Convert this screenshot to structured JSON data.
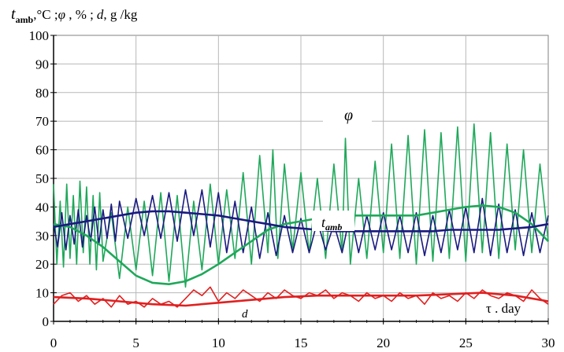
{
  "chart_data": {
    "type": "line",
    "title": "",
    "ylabel_parts": {
      "t": "t",
      "t_sub": "amb",
      "unit1": ",°C ;",
      "phi": "φ",
      "unit2": " , % ;",
      "d": "d",
      "unit3": ", g /kg"
    },
    "xlabel": "τ . day",
    "xlim": [
      0,
      30
    ],
    "ylim": [
      0,
      100
    ],
    "x_ticks": [
      0,
      5,
      10,
      15,
      20,
      25,
      30
    ],
    "y_ticks": [
      0,
      10,
      20,
      30,
      40,
      50,
      60,
      70,
      80,
      90,
      100
    ],
    "grid": true,
    "series": [
      {
        "name": "φ",
        "label_t": "",
        "color": "#1fa85a",
        "kind": "hourly",
        "x": [
          0,
          0.2,
          0.4,
          0.6,
          0.8,
          1.0,
          1.2,
          1.4,
          1.6,
          1.8,
          2.0,
          2.2,
          2.4,
          2.6,
          2.8,
          3.0,
          3.5,
          4.0,
          4.5,
          5.0,
          5.5,
          6.0,
          6.5,
          7.0,
          7.5,
          8.0,
          8.5,
          9.0,
          9.5,
          10.0,
          10.5,
          11.0,
          11.5,
          12.0,
          12.5,
          13.0,
          13.3,
          13.6,
          14.0,
          14.5,
          15.0,
          15.5,
          16.0,
          16.5,
          17.0,
          17.5,
          17.7,
          18.0,
          18.5,
          19.0,
          19.5,
          20.0,
          20.5,
          21.0,
          21.5,
          22.0,
          22.5,
          23.0,
          23.5,
          24.0,
          24.5,
          25.0,
          25.5,
          26.0,
          26.5,
          27.0,
          27.5,
          28.0,
          28.5,
          29.0,
          29.5,
          30.0
        ],
        "y": [
          48,
          20,
          42,
          19,
          48,
          22,
          44,
          20,
          49,
          24,
          47,
          20,
          44,
          18,
          45,
          21,
          38,
          15,
          40,
          18,
          42,
          16,
          45,
          14,
          44,
          12,
          42,
          18,
          48,
          20,
          46,
          22,
          52,
          20,
          58,
          24,
          60,
          22,
          55,
          25,
          52,
          24,
          50,
          22,
          55,
          24,
          64,
          20,
          50,
          22,
          56,
          24,
          62,
          22,
          65,
          20,
          67,
          21,
          66,
          22,
          68,
          21,
          69,
          24,
          66,
          22,
          62,
          25,
          60,
          24,
          55,
          28
        ]
      },
      {
        "name": "t_amb",
        "label_t": "t",
        "label_sub": "amb",
        "color": "#1a1a80",
        "kind": "hourly",
        "x": [
          0,
          0.25,
          0.5,
          0.75,
          1.0,
          1.25,
          1.5,
          1.75,
          2.0,
          2.25,
          2.5,
          2.75,
          3.0,
          3.25,
          3.5,
          3.75,
          4.0,
          4.5,
          5.0,
          5.5,
          6.0,
          6.5,
          7.0,
          7.5,
          8.0,
          8.5,
          9.0,
          9.5,
          10.0,
          10.5,
          11.0,
          11.5,
          12.0,
          12.5,
          13.0,
          13.5,
          14.0,
          14.5,
          15.0,
          15.5,
          16.0,
          16.5,
          17.0,
          17.5,
          18.0,
          18.5,
          19.0,
          19.5,
          20.0,
          20.5,
          21.0,
          21.5,
          22.0,
          22.5,
          23.0,
          23.5,
          24.0,
          24.5,
          25.0,
          25.5,
          26.0,
          26.5,
          27.0,
          27.5,
          28.0,
          28.5,
          29.0,
          29.5,
          30.0
        ],
        "y": [
          34,
          26,
          38,
          25,
          37,
          27,
          39,
          26,
          37,
          28,
          40,
          27,
          39,
          29,
          41,
          28,
          42,
          29,
          43,
          30,
          44,
          29,
          45,
          28,
          46,
          30,
          46,
          26,
          45,
          24,
          42,
          24,
          40,
          22,
          38,
          23,
          37,
          24,
          36,
          24,
          35,
          25,
          34,
          24,
          38,
          24,
          37,
          25,
          38,
          25,
          37,
          24,
          38,
          23,
          37,
          24,
          39,
          25,
          40,
          24,
          43,
          23,
          41,
          24,
          39,
          23,
          38,
          24,
          37
        ]
      },
      {
        "name": "d",
        "label_t": "d",
        "color": "#e02020",
        "kind": "hourly",
        "x": [
          0,
          0.5,
          1.0,
          1.5,
          2.0,
          2.5,
          3.0,
          3.5,
          4.0,
          4.5,
          5.0,
          5.5,
          6.0,
          6.5,
          7.0,
          7.5,
          8.0,
          8.5,
          9.0,
          9.5,
          10.0,
          10.5,
          11.0,
          11.5,
          12.0,
          12.5,
          13.0,
          13.5,
          14.0,
          14.5,
          15.0,
          15.5,
          16.0,
          16.5,
          17.0,
          17.5,
          18.0,
          18.5,
          19.0,
          19.5,
          20.0,
          20.5,
          21.0,
          21.5,
          22.0,
          22.5,
          23.0,
          23.5,
          24.0,
          24.5,
          25.0,
          25.5,
          26.0,
          26.5,
          27.0,
          27.5,
          28.0,
          28.5,
          29.0,
          29.5,
          30.0
        ],
        "y": [
          6,
          9,
          10,
          7,
          9,
          6,
          8,
          5,
          9,
          6,
          7,
          5,
          8,
          6,
          7,
          5,
          8,
          11,
          9,
          12,
          7,
          10,
          8,
          11,
          9,
          7,
          10,
          8,
          11,
          9,
          8,
          10,
          9,
          11,
          8,
          10,
          9,
          7,
          10,
          8,
          9,
          7,
          10,
          8,
          9,
          6,
          10,
          8,
          9,
          7,
          10,
          8,
          11,
          9,
          8,
          10,
          9,
          7,
          11,
          8,
          6
        ]
      },
      {
        "name": "φ mean",
        "color": "#1fa85a",
        "kind": "mean",
        "x": [
          0,
          1,
          2,
          3,
          4,
          5,
          6,
          7,
          8,
          9,
          10,
          11,
          12,
          13,
          14,
          15,
          16,
          17,
          18,
          19,
          20,
          21,
          22,
          23,
          24,
          25,
          26,
          27,
          28,
          29,
          30
        ],
        "y": [
          34,
          33,
          30,
          26,
          21,
          16,
          13.5,
          13,
          14,
          16.5,
          20,
          24,
          28,
          32,
          34,
          35,
          36,
          36.5,
          37,
          37,
          37,
          37,
          37,
          38,
          39,
          40,
          40.5,
          40,
          38,
          34,
          28
        ]
      },
      {
        "name": "t_amb mean",
        "color": "#1a1a80",
        "kind": "mean",
        "x": [
          0,
          1,
          2,
          3,
          4,
          5,
          6,
          7,
          8,
          9,
          10,
          11,
          12,
          13,
          14,
          15,
          16,
          17,
          18,
          19,
          20,
          21,
          22,
          23,
          24,
          25,
          26,
          27,
          28,
          29,
          30
        ],
        "y": [
          33,
          34,
          35,
          36,
          37,
          38,
          38.5,
          38.5,
          38,
          37.5,
          37,
          36,
          35,
          34,
          33,
          32.5,
          32,
          31.5,
          31.5,
          31.5,
          31.5,
          31.5,
          31.5,
          31.5,
          32,
          32,
          32,
          32,
          32.5,
          33,
          34
        ]
      },
      {
        "name": "d mean",
        "color": "#e02020",
        "kind": "mean",
        "x": [
          0,
          2,
          4,
          6,
          8,
          10,
          12,
          14,
          16,
          18,
          20,
          22,
          24,
          26,
          28,
          30
        ],
        "y": [
          8.5,
          8,
          7,
          6,
          5.5,
          6.5,
          7.5,
          8.5,
          9,
          9,
          9,
          9,
          9.5,
          10,
          9,
          7
        ]
      }
    ],
    "annotations": {
      "phi_label": "φ",
      "tamb_t": "t",
      "tamb_sub": "amb",
      "d_label": "d"
    }
  }
}
